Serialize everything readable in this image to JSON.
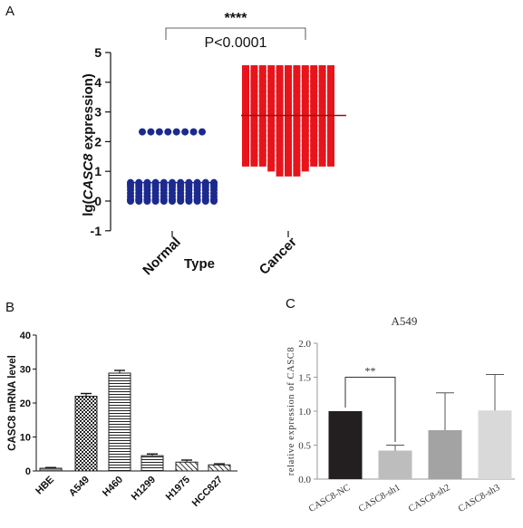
{
  "panel_labels": {
    "a": "A",
    "b": "B",
    "c": "C"
  },
  "chart_data": [
    {
      "panel": "A",
      "type": "scatter",
      "xlabel": "Type",
      "ylabel_prefix": "lg(",
      "ylabel_gene": "CASC8",
      "ylabel_suffix": " expression)",
      "ylim": [
        -1,
        5
      ],
      "yticks": [
        "-1",
        "0",
        "1",
        "2",
        "3",
        "4",
        "5"
      ],
      "categories": [
        "Normal",
        "Cancer"
      ],
      "colors": {
        "Normal": "#1c2a8f",
        "Cancer": "#e8141b"
      },
      "means": [
        0.62,
        2.88
      ],
      "significance": "****",
      "pvalue_text": "P<0.0001",
      "normal_points": [
        {
          "y": 2.33,
          "n": 8
        },
        {
          "y": 0.62,
          "n": 11
        },
        {
          "y": 0.55,
          "n": 11
        },
        {
          "y": 0.48,
          "n": 11
        },
        {
          "y": 0.38,
          "n": 11
        },
        {
          "y": 0.27,
          "n": 11
        },
        {
          "y": 0.16,
          "n": 11
        },
        {
          "y": 0.05,
          "n": 11
        },
        {
          "y": 0.0,
          "n": 11
        }
      ],
      "cancer_points": {
        "ymin": 0.95,
        "ymax": 4.45,
        "rows": 22,
        "n_per_row": 11
      }
    },
    {
      "panel": "B",
      "type": "bar",
      "ylabel": "CASC8 mRNA level",
      "ylim": [
        0,
        40
      ],
      "yticks": [
        "0",
        "10",
        "20",
        "30",
        "40"
      ],
      "categories": [
        "HBE",
        "A549",
        "H460",
        "H1299",
        "H1975",
        "HCC827"
      ],
      "values": [
        0.8,
        22,
        28.8,
        4.5,
        2.6,
        1.8
      ],
      "errors": [
        0.2,
        0.8,
        0.8,
        0.5,
        0.6,
        0.3
      ],
      "patterns": [
        "solid",
        "checker",
        "hlines",
        "hlines",
        "diagonal",
        "diagonal"
      ]
    },
    {
      "panel": "C",
      "type": "bar",
      "title": "A549",
      "ylabel": "relative expression of CASC8",
      "ylim": [
        0,
        2.0
      ],
      "yticks": [
        "0.0",
        "0.5",
        "1.0",
        "1.5",
        "2.0"
      ],
      "categories": [
        "CASC8-NC",
        "CASC8-sh1",
        "CASC8-sh2",
        "CASC8-sh3"
      ],
      "values": [
        1.0,
        0.42,
        0.72,
        1.01
      ],
      "errors": [
        0.0,
        0.08,
        0.55,
        0.53
      ],
      "colors": [
        "#231f20",
        "#bdbdbd",
        "#a3a3a3",
        "#d9d9d9"
      ],
      "significance": "**"
    }
  ]
}
